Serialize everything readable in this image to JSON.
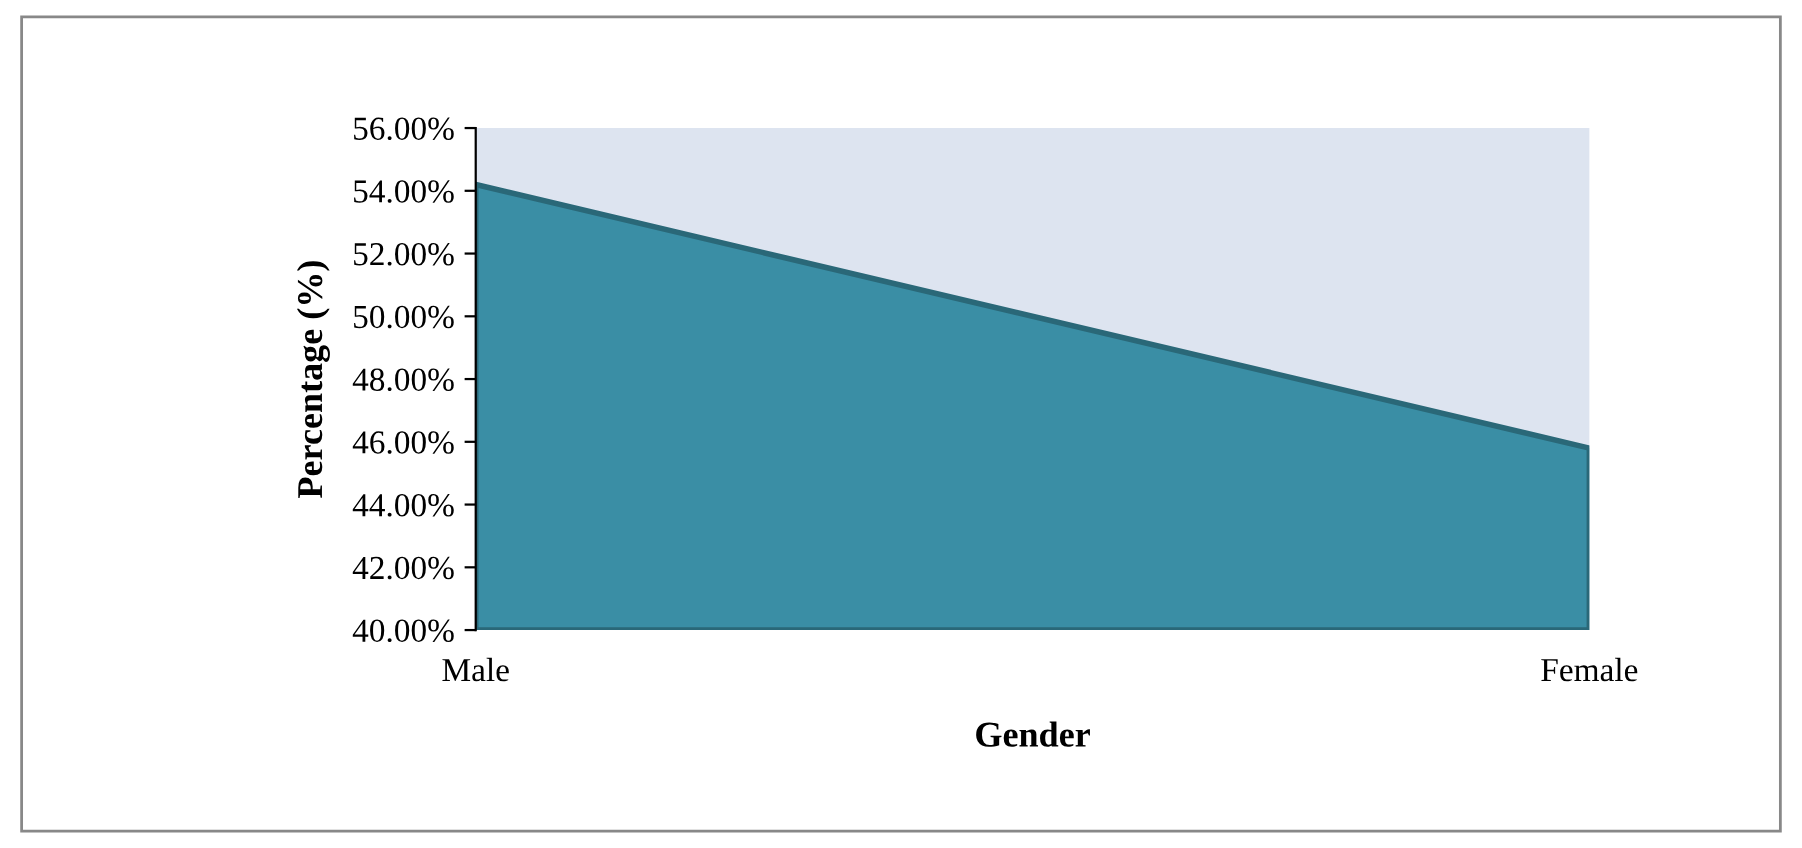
{
  "chart_data": {
    "type": "area",
    "xlabel": "Gender",
    "ylabel": "Percentage (%)",
    "categories": [
      "Male",
      "Female"
    ],
    "series": [
      {
        "color": "#3a8ea5",
        "values": [
          54.2,
          45.8
        ]
      }
    ],
    "ylim": [
      40,
      56
    ],
    "yticks": [
      {
        "value": 40,
        "label": "40.00%"
      },
      {
        "value": 42,
        "label": "42.00%"
      },
      {
        "value": 44,
        "label": "44.00%"
      },
      {
        "value": 46,
        "label": "46.00%"
      },
      {
        "value": 48,
        "label": "48.00%"
      },
      {
        "value": 50,
        "label": "50.00%"
      },
      {
        "value": 52,
        "label": "52.00%"
      },
      {
        "value": 54,
        "label": "54.00%"
      },
      {
        "value": 56,
        "label": "56.00%"
      }
    ],
    "bands": [
      {
        "axis": "y",
        "from": 40,
        "to": 56,
        "color": "#dde4f0"
      }
    ],
    "grid": false,
    "legend": false
  }
}
